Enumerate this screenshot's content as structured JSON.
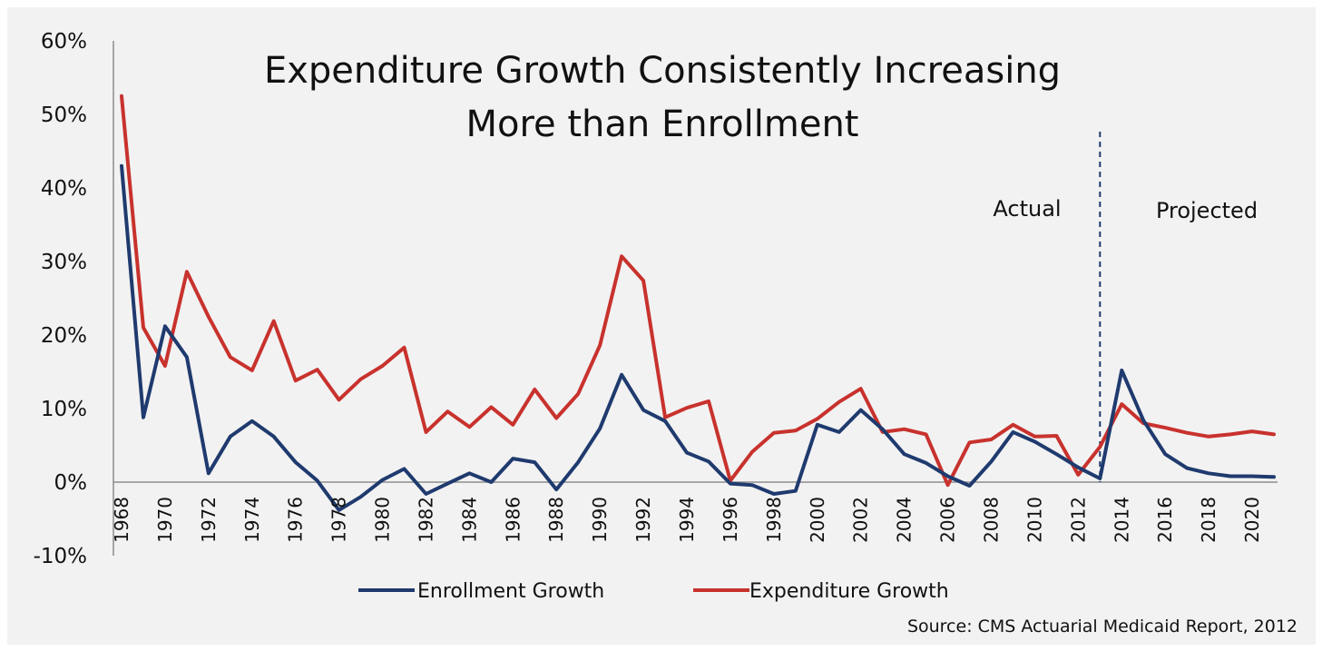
{
  "chart_data": {
    "type": "line",
    "title": [
      "Expenditure Growth Consistently Increasing",
      "More than Enrollment"
    ],
    "x": [
      1968,
      1969,
      1970,
      1971,
      1972,
      1973,
      1974,
      1975,
      1976,
      1977,
      1978,
      1979,
      1980,
      1981,
      1982,
      1983,
      1984,
      1985,
      1986,
      1987,
      1988,
      1989,
      1990,
      1991,
      1992,
      1993,
      1994,
      1995,
      1996,
      1997,
      1998,
      1999,
      2000,
      2001,
      2002,
      2003,
      2004,
      2005,
      2006,
      2007,
      2008,
      2009,
      2010,
      2011,
      2012,
      2013,
      2014,
      2015,
      2016,
      2017,
      2018,
      2019,
      2020,
      2021
    ],
    "x_tick_labels": [
      "1968",
      "1970",
      "1972",
      "1974",
      "1976",
      "1978",
      "1980",
      "1982",
      "1984",
      "1986",
      "1988",
      "1990",
      "1992",
      "1994",
      "1996",
      "1998",
      "2000",
      "2002",
      "2004",
      "2006",
      "2008",
      "2010",
      "2012",
      "2014",
      "2016",
      "2018",
      "2020"
    ],
    "y_tick_labels": [
      "60%",
      "50%",
      "40%",
      "30%",
      "20%",
      "10%",
      "0%",
      "-10%"
    ],
    "ylim": [
      -10,
      60
    ],
    "grid": false,
    "legend_position": "bottom",
    "series": [
      {
        "name": "Enrollment Growth",
        "color": "#1f3a6e",
        "values": [
          43.0,
          8.8,
          21.2,
          17.0,
          1.2,
          6.2,
          8.3,
          6.2,
          2.7,
          0.2,
          -3.8,
          -2.0,
          0.3,
          1.8,
          -1.6,
          -0.2,
          1.2,
          0.0,
          3.2,
          2.7,
          -1.0,
          2.7,
          7.3,
          14.6,
          9.8,
          8.3,
          4.0,
          2.8,
          -0.2,
          -0.4,
          -1.6,
          -1.2,
          7.8,
          6.8,
          9.8,
          7.2,
          3.8,
          2.6,
          0.8,
          -0.5,
          2.8,
          6.8,
          5.5,
          3.8,
          2.0,
          0.5,
          15.2,
          8.4,
          3.8,
          1.9,
          1.2,
          0.8,
          0.8,
          0.7
        ]
      },
      {
        "name": "Expenditure Growth",
        "color": "#c8322d",
        "values": [
          52.5,
          21.0,
          15.8,
          28.6,
          22.5,
          17.0,
          15.2,
          21.9,
          13.8,
          15.3,
          11.2,
          14.0,
          15.8,
          18.3,
          6.8,
          9.6,
          7.5,
          10.2,
          7.8,
          12.6,
          8.7,
          12.0,
          18.6,
          30.7,
          27.4,
          8.8,
          10.1,
          11.0,
          0.2,
          4.1,
          6.7,
          7.0,
          8.6,
          10.9,
          12.7,
          6.8,
          7.2,
          6.5,
          -0.4,
          5.4,
          5.8,
          7.8,
          6.2,
          6.3,
          1.0,
          4.8,
          10.6,
          8.0,
          7.4,
          6.7,
          6.2,
          6.5,
          6.9,
          6.5
        ]
      }
    ],
    "annotations": {
      "divider_year": 2013,
      "left_label": "Actual",
      "right_label": "Projected"
    },
    "source": "Source: CMS Actuarial Medicaid Report, 2012"
  }
}
